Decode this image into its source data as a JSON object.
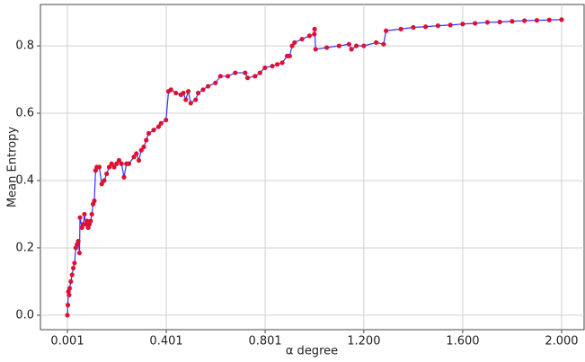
{
  "chart_data": {
    "type": "line",
    "xlabel": "α degree",
    "ylabel": "Mean Entropy",
    "x": [
      0.001,
      0.003,
      0.005,
      0.008,
      0.01,
      0.015,
      0.02,
      0.025,
      0.03,
      0.035,
      0.04,
      0.045,
      0.05,
      0.052,
      0.06,
      0.065,
      0.07,
      0.075,
      0.08,
      0.085,
      0.09,
      0.095,
      0.1,
      0.105,
      0.11,
      0.115,
      0.12,
      0.13,
      0.14,
      0.15,
      0.16,
      0.17,
      0.18,
      0.19,
      0.2,
      0.21,
      0.22,
      0.23,
      0.24,
      0.25,
      0.27,
      0.28,
      0.29,
      0.3,
      0.31,
      0.32,
      0.33,
      0.35,
      0.37,
      0.38,
      0.4,
      0.41,
      0.42,
      0.44,
      0.46,
      0.47,
      0.48,
      0.49,
      0.5,
      0.52,
      0.53,
      0.55,
      0.57,
      0.6,
      0.62,
      0.65,
      0.68,
      0.72,
      0.73,
      0.76,
      0.78,
      0.8,
      0.83,
      0.85,
      0.87,
      0.89,
      0.9,
      0.91,
      0.92,
      0.95,
      0.98,
      1.0,
      1.001,
      1.005,
      1.05,
      1.1,
      1.14,
      1.15,
      1.17,
      1.2,
      1.25,
      1.28,
      1.29,
      1.35,
      1.4,
      1.45,
      1.5,
      1.55,
      1.6,
      1.65,
      1.7,
      1.75,
      1.8,
      1.85,
      1.9,
      1.95,
      2.0
    ],
    "series": [
      {
        "name": "Mean Entropy",
        "color": "#3333ff",
        "marker_color": "#dd1133",
        "values": [
          0.0,
          0.03,
          0.07,
          0.06,
          0.08,
          0.1,
          0.12,
          0.14,
          0.155,
          0.2,
          0.21,
          0.22,
          0.185,
          0.29,
          0.26,
          0.27,
          0.3,
          0.27,
          0.28,
          0.26,
          0.27,
          0.28,
          0.3,
          0.33,
          0.34,
          0.43,
          0.44,
          0.44,
          0.39,
          0.4,
          0.42,
          0.44,
          0.45,
          0.44,
          0.45,
          0.46,
          0.45,
          0.41,
          0.45,
          0.45,
          0.47,
          0.48,
          0.46,
          0.49,
          0.5,
          0.52,
          0.54,
          0.55,
          0.56,
          0.57,
          0.58,
          0.665,
          0.67,
          0.66,
          0.655,
          0.66,
          0.64,
          0.665,
          0.63,
          0.64,
          0.66,
          0.67,
          0.68,
          0.69,
          0.71,
          0.71,
          0.72,
          0.72,
          0.705,
          0.71,
          0.72,
          0.735,
          0.74,
          0.745,
          0.75,
          0.77,
          0.77,
          0.8,
          0.81,
          0.82,
          0.83,
          0.835,
          0.85,
          0.79,
          0.795,
          0.8,
          0.805,
          0.79,
          0.8,
          0.8,
          0.81,
          0.805,
          0.845,
          0.85,
          0.855,
          0.857,
          0.86,
          0.862,
          0.865,
          0.867,
          0.87,
          0.871,
          0.873,
          0.875,
          0.876,
          0.877,
          0.878
        ]
      }
    ],
    "xlim": [
      -0.108,
      2.091
    ],
    "xticks": [
      0.001,
      0.401,
      0.801,
      {
        "value": 1.2,
        "label": "1.200"
      },
      {
        "value": 1.6,
        "label": "1.600"
      },
      {
        "value": 2.0,
        "label": "2.000"
      }
    ],
    "ylim": [
      -0.043,
      0.923
    ],
    "yticks": [
      {
        "value": 0,
        "label": "0.0"
      },
      0.2,
      0.4,
      0.6,
      0.8
    ],
    "grid": true
  }
}
